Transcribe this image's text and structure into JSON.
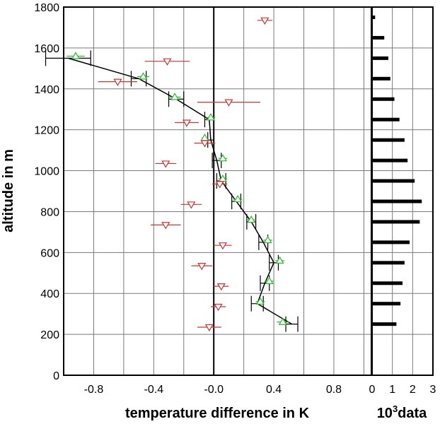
{
  "chart_data": [
    {
      "type": "scatter",
      "xlabel": "temperature difference in K",
      "ylabel": "altitude in m",
      "xlim": [
        -1.0,
        1.05
      ],
      "ylim": [
        0,
        1800
      ],
      "xticks": [
        -0.8,
        -0.4,
        -0.0,
        0.4,
        0.8
      ],
      "xtick_labels": [
        "-0.8",
        "-0.4",
        "-0.0",
        "0.4",
        "0.8"
      ],
      "yticks": [
        0,
        200,
        400,
        600,
        800,
        1000,
        1200,
        1400,
        1600,
        1800
      ],
      "ytick_labels": [
        "0",
        "200",
        "400",
        "600",
        "800",
        "1000",
        "1200",
        "1400",
        "1600",
        "1800"
      ],
      "grid": true,
      "series": [
        {
          "marker": "line-with-errorbars",
          "color": "#000000",
          "points": [
            {
              "x": 0.52,
              "y": 250,
              "err": 0.04
            },
            {
              "x": 0.29,
              "y": 350,
              "err": 0.04
            },
            {
              "x": 0.34,
              "y": 450,
              "err": 0.03
            },
            {
              "x": 0.4,
              "y": 550,
              "err": 0.03
            },
            {
              "x": 0.33,
              "y": 650,
              "err": 0.03
            },
            {
              "x": 0.25,
              "y": 750,
              "err": 0.03
            },
            {
              "x": 0.15,
              "y": 850,
              "err": 0.03
            },
            {
              "x": 0.05,
              "y": 950,
              "err": 0.03
            },
            {
              "x": 0.02,
              "y": 1050,
              "err": 0.03
            },
            {
              "x": -0.02,
              "y": 1150,
              "err": 0.02
            },
            {
              "x": -0.03,
              "y": 1250,
              "err": 0.03
            },
            {
              "x": -0.25,
              "y": 1350,
              "err": 0.05
            },
            {
              "x": -0.5,
              "y": 1450,
              "err": 0.05
            },
            {
              "x": -0.97,
              "y": 1550,
              "err": 0.15
            }
          ]
        },
        {
          "marker": "triangle-up",
          "color": "#2db82d",
          "points": [
            {
              "x": 0.46,
              "y": 260,
              "err": 0.04
            },
            {
              "x": 0.31,
              "y": 360,
              "err": 0.03
            },
            {
              "x": 0.37,
              "y": 460,
              "err": 0.03
            },
            {
              "x": 0.44,
              "y": 560,
              "err": 0.03
            },
            {
              "x": 0.36,
              "y": 660,
              "err": 0.03
            },
            {
              "x": 0.25,
              "y": 760,
              "err": 0.03
            },
            {
              "x": 0.16,
              "y": 860,
              "err": 0.03
            },
            {
              "x": 0.06,
              "y": 960,
              "err": 0.03
            },
            {
              "x": 0.06,
              "y": 1060,
              "err": 0.03
            },
            {
              "x": -0.06,
              "y": 1160,
              "err": 0.02
            },
            {
              "x": -0.02,
              "y": 1260,
              "err": 0.03
            },
            {
              "x": -0.26,
              "y": 1360,
              "err": 0.04
            },
            {
              "x": -0.47,
              "y": 1460,
              "err": 0.04
            },
            {
              "x": -0.92,
              "y": 1560,
              "err": 0.06
            }
          ]
        },
        {
          "marker": "triangle-down",
          "color": "#cc3333",
          "points": [
            {
              "x": -0.03,
              "y": 235,
              "err": 0.08
            },
            {
              "x": 0.03,
              "y": 335,
              "err": 0.05
            },
            {
              "x": 0.05,
              "y": 435,
              "err": 0.05
            },
            {
              "x": -0.08,
              "y": 535,
              "err": 0.07
            },
            {
              "x": 0.06,
              "y": 635,
              "err": 0.06
            },
            {
              "x": -0.32,
              "y": 735,
              "err": 0.1
            },
            {
              "x": -0.15,
              "y": 835,
              "err": 0.07
            },
            {
              "x": 0.04,
              "y": 935,
              "err": 0.05
            },
            {
              "x": -0.32,
              "y": 1035,
              "err": 0.07
            },
            {
              "x": -0.06,
              "y": 1135,
              "err": 0.07
            },
            {
              "x": -0.18,
              "y": 1235,
              "err": 0.08
            },
            {
              "x": 0.1,
              "y": 1335,
              "err": 0.21
            },
            {
              "x": -0.64,
              "y": 1435,
              "err": 0.13
            },
            {
              "x": -0.31,
              "y": 1535,
              "err": 0.15
            },
            {
              "x": 0.34,
              "y": 1735,
              "err": 0.05
            }
          ]
        }
      ]
    },
    {
      "type": "bar",
      "orientation": "horizontal",
      "xlabel": "10³data",
      "xlabel_base": "10",
      "xlabel_sup": "3",
      "xlabel_rest": "data",
      "xlim": [
        0,
        3
      ],
      "xticks": [
        0,
        1,
        2,
        3
      ],
      "xtick_labels": [
        "0",
        "1",
        "2",
        "3"
      ],
      "ylim": [
        0,
        1800
      ],
      "grid": true,
      "bar_color": "#000000",
      "bars": [
        {
          "y": 250,
          "value": 1.2
        },
        {
          "y": 350,
          "value": 1.4
        },
        {
          "y": 450,
          "value": 1.5
        },
        {
          "y": 550,
          "value": 1.6
        },
        {
          "y": 650,
          "value": 1.85
        },
        {
          "y": 750,
          "value": 2.35
        },
        {
          "y": 850,
          "value": 2.45
        },
        {
          "y": 950,
          "value": 2.1
        },
        {
          "y": 1050,
          "value": 1.75
        },
        {
          "y": 1150,
          "value": 1.6
        },
        {
          "y": 1250,
          "value": 1.35
        },
        {
          "y": 1350,
          "value": 1.1
        },
        {
          "y": 1450,
          "value": 0.9
        },
        {
          "y": 1550,
          "value": 0.8
        },
        {
          "y": 1650,
          "value": 0.6
        },
        {
          "y": 1750,
          "value": 0.15
        }
      ]
    }
  ]
}
